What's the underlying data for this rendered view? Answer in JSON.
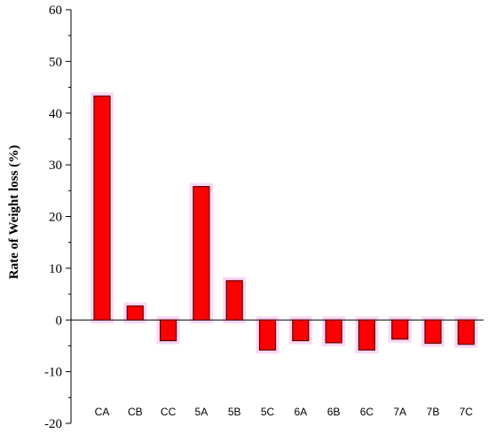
{
  "chart_data": {
    "type": "bar",
    "title": "",
    "xlabel": "",
    "ylabel": "Rate of  Weight  loss (%)",
    "ylim": [
      -20,
      60
    ],
    "yticks": [
      -20,
      -10,
      0,
      10,
      20,
      30,
      40,
      50,
      60
    ],
    "categories": [
      "CA",
      "CB",
      "CC",
      "5A",
      "5B",
      "5C",
      "6A",
      "6B",
      "6C",
      "7A",
      "7B",
      "7C"
    ],
    "values": [
      43.3,
      2.7,
      -4.0,
      25.8,
      7.6,
      -5.8,
      -4.0,
      -4.4,
      -5.8,
      -3.7,
      -4.5,
      -4.7
    ],
    "grid": false,
    "legend": "none",
    "colors": {
      "bar_fill": "#ff0000",
      "bar_edge": "#5a0000",
      "halo": "#f7c8f0",
      "axis": "#000000"
    }
  }
}
